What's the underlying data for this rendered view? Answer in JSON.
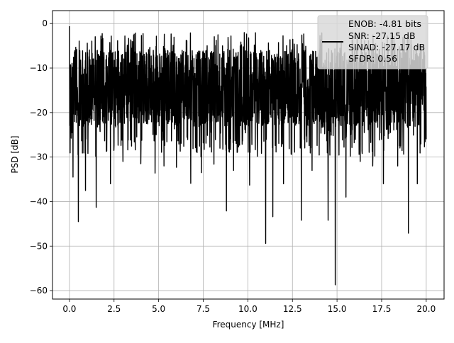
{
  "chart_data": {
    "type": "line",
    "xlabel": "Frequency [MHz]",
    "ylabel": "PSD [dB]",
    "xlim": [
      -0.95,
      21.0
    ],
    "ylim": [
      -61.9,
      2.9
    ],
    "xticks": [
      0.0,
      2.5,
      5.0,
      7.5,
      10.0,
      12.5,
      15.0,
      17.5,
      20.0
    ],
    "xtick_labels": [
      "0.0",
      "2.5",
      "5.0",
      "7.5",
      "10.0",
      "12.5",
      "15.0",
      "17.5",
      "20.0"
    ],
    "yticks": [
      0,
      -10,
      -20,
      -30,
      -40,
      -50,
      -60
    ],
    "ytick_labels": [
      "0",
      "−10",
      "−20",
      "−30",
      "−40",
      "−50",
      "−60"
    ],
    "grid": true,
    "legend": {
      "placement": "upper right",
      "lines": [
        "ENOB: -4.81 bits",
        "SNR: -27.15 dB",
        "SINAD: -27.17 dB",
        "SFDR: 0.56"
      ]
    },
    "series": [
      {
        "color": "#000000",
        "x": [
          0.0,
          0.2,
          0.5,
          0.9,
          1.5,
          2.3,
          3.0,
          4.0,
          4.8,
          5.3,
          6.0,
          6.8,
          7.4,
          8.1,
          8.8,
          9.2,
          10.1,
          11.0,
          11.4,
          12.0,
          13.0,
          13.6,
          14.5,
          14.9,
          15.5,
          16.3,
          17.0,
          17.6,
          18.4,
          19.0,
          19.5,
          20.0
        ],
        "y": [
          -0.6,
          -34.5,
          -44.5,
          -37.5,
          -41.3,
          -36.0,
          -31.0,
          -31.5,
          -33.6,
          -32.0,
          -32.3,
          -35.9,
          -33.5,
          -31.6,
          -42.1,
          -33.0,
          -36.3,
          -49.4,
          -43.4,
          -36.0,
          -44.2,
          -33.0,
          -44.2,
          -58.7,
          -39.0,
          -31.0,
          -32.0,
          -36.0,
          -32.0,
          -47.1,
          -36.0,
          -26.0
        ]
      }
    ]
  }
}
